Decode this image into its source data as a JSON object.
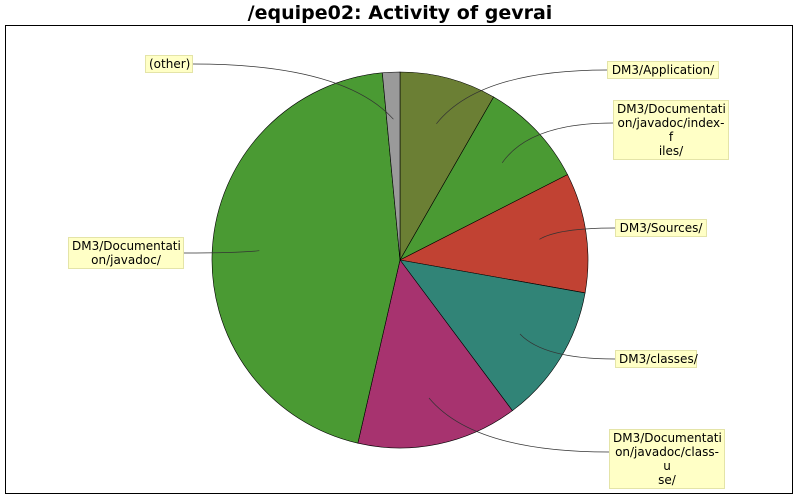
{
  "chart_data": {
    "type": "pie",
    "title": "/equipe02: Activity of gevrai",
    "slices": [
      {
        "label": "DM3/Application/",
        "value": 8.3,
        "color": "#6b7f34"
      },
      {
        "label": "DM3/Documentati\non/javadoc/index-f\niles/",
        "value": 9.2,
        "color": "#4a9a33"
      },
      {
        "label": "DM3/Sources/",
        "value": 10.3,
        "color": "#c14233"
      },
      {
        "label": "DM3/classes/",
        "value": 12.0,
        "color": "#318477"
      },
      {
        "label": "DM3/Documentati\non/javadoc/class-u\nse/",
        "value": 13.8,
        "color": "#a7336f"
      },
      {
        "label": "DM3/Documentati\non/javadoc/",
        "value": 44.9,
        "color": "#4a9a33"
      },
      {
        "label": "(other)",
        "value": 1.5,
        "color": "#9a9a9a"
      }
    ]
  }
}
